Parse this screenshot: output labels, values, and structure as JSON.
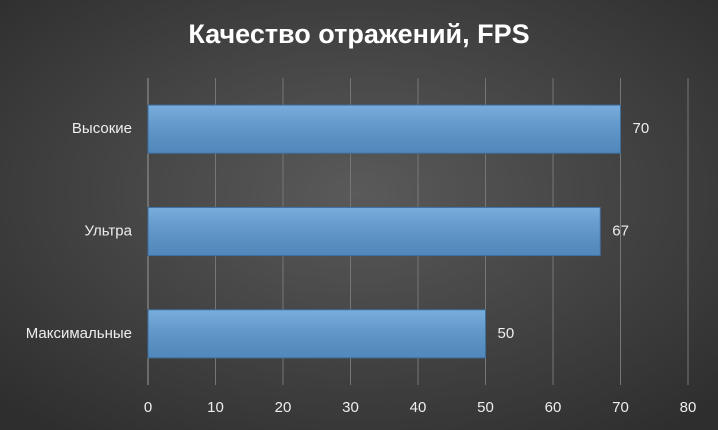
{
  "chart_data": {
    "type": "bar",
    "orientation": "horizontal",
    "title": "Качество отражений, FPS",
    "categories": [
      "Высокие",
      "Ультра",
      "Максимальные"
    ],
    "values": [
      70,
      67,
      50
    ],
    "color": "#5b9bd5",
    "xlim": [
      0,
      80
    ],
    "xticks": [
      0,
      10,
      20,
      30,
      40,
      50,
      60,
      70,
      80
    ],
    "grid": true
  }
}
